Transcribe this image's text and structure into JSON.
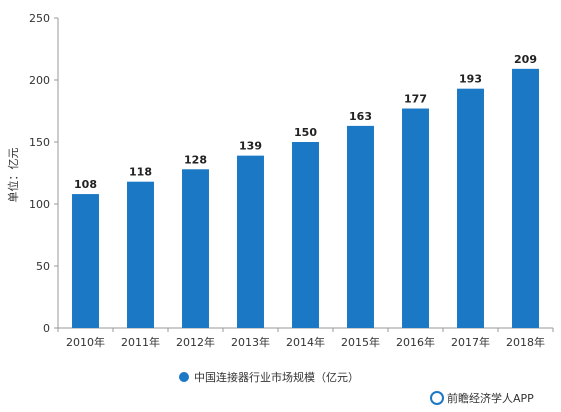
{
  "chart_data": {
    "type": "bar",
    "categories": [
      "2010年",
      "2011年",
      "2012年",
      "2013年",
      "2014年",
      "2015年",
      "2016年",
      "2017年",
      "2018年"
    ],
    "series": [
      {
        "name": "中国连接器行业市场规模（亿元）",
        "values": [
          108,
          118,
          128,
          139,
          150,
          163,
          177,
          193,
          209
        ],
        "color": "#1b78c4"
      }
    ],
    "ylabel": "单位：亿元",
    "xlabel": "",
    "ylim": [
      0,
      250
    ],
    "yticks": [
      0,
      50,
      100,
      150,
      200,
      250
    ],
    "grid": false,
    "legend_position": "bottom-center",
    "data_labels": true
  },
  "source": {
    "text": "前瞻经济学人APP",
    "icon": "qianzhan-logo-icon",
    "icon_color": "#1b78c4"
  }
}
